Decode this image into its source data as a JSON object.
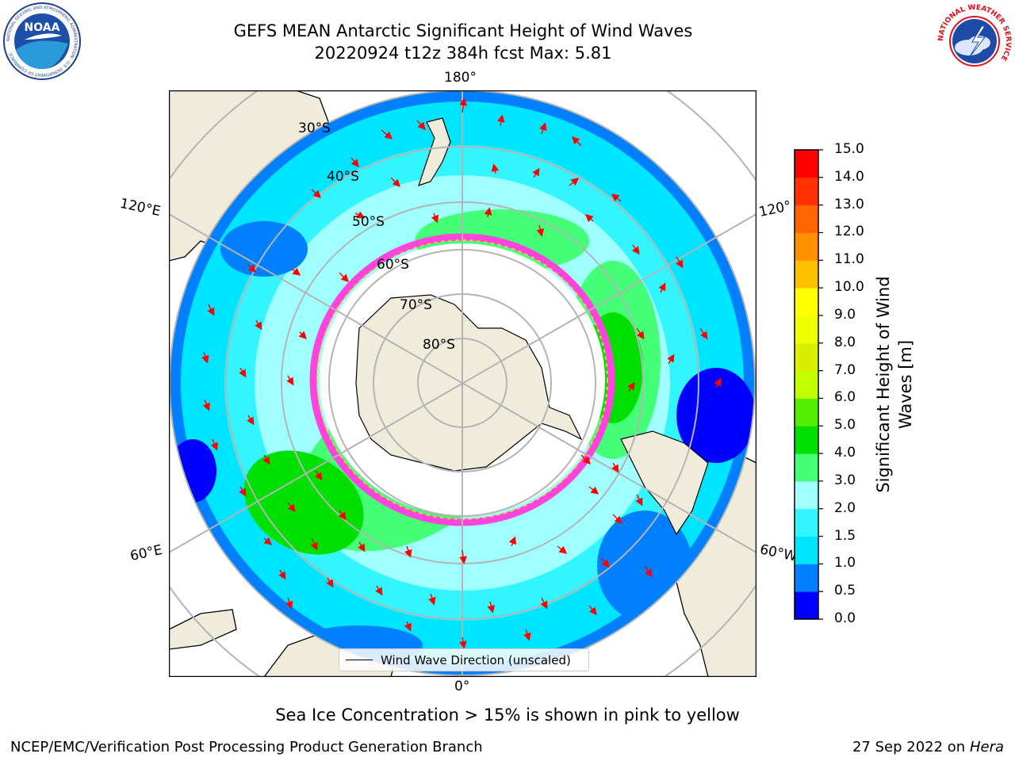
{
  "header": {
    "title_line1": "GEFS MEAN Antarctic Significant Height of Wind Waves",
    "title_line2": "20220924 t12z 384h fcst   Max: 5.81"
  },
  "logos": {
    "noaa": {
      "text": "NOAA",
      "ring_text": "NATIONAL OCEANIC AND ATMOSPHERIC ADMINISTRATION · U.S. DEPARTMENT OF COMMERCE"
    },
    "nws": {
      "ring_text": "NATIONAL WEATHER SERVICE"
    }
  },
  "map": {
    "projection": "south-polar-stereographic",
    "lon_labels": {
      "top": "180°",
      "bottom": "0°",
      "upper_left": "120°E",
      "upper_right": "120°",
      "lower_left": "60°E",
      "lower_right": "60°W"
    },
    "lat_labels": [
      "30°S",
      "40°S",
      "50°S",
      "60°S",
      "70°S",
      "80°S"
    ],
    "colors": {
      "land": "#efecdc",
      "coast": "#000000",
      "grid": "#b4b4b4",
      "ice_pink": "#ff44dd",
      "ice_yellow": "#ffcc33",
      "arrow": "#ff0000"
    }
  },
  "colorbar": {
    "label": "Significant Height of Wind Waves [m]",
    "ticks": [
      "0.0",
      "0.5",
      "1.0",
      "1.5",
      "2.0",
      "3.0",
      "4.0",
      "5.0",
      "6.0",
      "7.0",
      "8.0",
      "9.0",
      "10.0",
      "11.0",
      "12.0",
      "13.0",
      "14.0",
      "15.0"
    ],
    "colors": [
      "#0000ff",
      "#0080ff",
      "#00e5ff",
      "#33f5ff",
      "#a0ffff",
      "#44ff77",
      "#00e000",
      "#55ee00",
      "#c0ff00",
      "#d8f000",
      "#eeff00",
      "#ffff00",
      "#ffc000",
      "#ff9000",
      "#ff6600",
      "#ff3300",
      "#ff0000"
    ]
  },
  "legend": {
    "label": "Wind Wave Direction (unscaled)"
  },
  "footer": {
    "note": "Sea Ice Concentration > 15% is shown in pink to yellow",
    "credit": "NCEP/EMC/Verification Post Processing Product Generation Branch",
    "date": "27 Sep 2022 on",
    "host": "Hera"
  }
}
